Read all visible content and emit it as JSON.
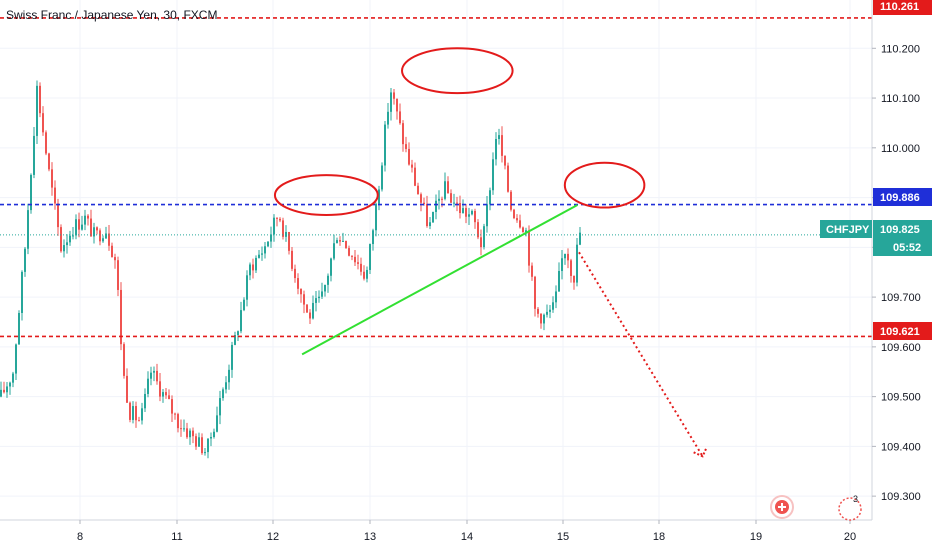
{
  "header": {
    "title": "Swiss Franc / Japanese Yen, 30, FXCM"
  },
  "colors": {
    "up": "#26a69a",
    "down": "#ef5350",
    "resistance": "#e31b1b",
    "support": "#e31b1b",
    "pivot": "#1f2fd8",
    "current": "#26a69a",
    "trendline": "#32e032",
    "annotation": "#e31b1b",
    "axis_text": "#131722"
  },
  "price_tags": {
    "upper": "110.261",
    "blue": "109.886",
    "current": "109.825",
    "countdown": "05:52",
    "lower": "109.621",
    "symbol": "CHFJPY"
  },
  "badges": {
    "count": "3"
  },
  "chart_data": {
    "type": "candlestick",
    "title": "Swiss Franc / Japanese Yen, 30, FXCM",
    "symbol": "CHFJPY",
    "interval": "30",
    "source": "FXCM",
    "ylim": [
      109.24,
      110.285
    ],
    "y_ticks": [
      "110.200",
      "110.100",
      "110.000",
      "109.900",
      "109.800",
      "109.700",
      "109.600",
      "109.500",
      "109.400",
      "109.300"
    ],
    "x_ticks": [
      "8",
      "11",
      "12",
      "13",
      "14",
      "15",
      "18",
      "19",
      "20"
    ],
    "horizontal_lines": [
      {
        "value": 110.261,
        "style": "dashed",
        "color": "#e31b1b"
      },
      {
        "value": 109.886,
        "style": "dashed",
        "color": "#1f2fd8"
      },
      {
        "value": 109.825,
        "style": "dotted",
        "color": "#26a69a"
      },
      {
        "value": 109.621,
        "style": "dashed",
        "color": "#e31b1b"
      }
    ],
    "trendline": {
      "from": [
        12.3,
        109.585
      ],
      "to": [
        15.45,
        109.885
      ],
      "color": "#32e032"
    },
    "projection": {
      "from": [
        15.5,
        109.79
      ],
      "to": [
        18.45,
        109.38
      ],
      "style": "dotted",
      "color": "#e31b1b"
    },
    "annotations": [
      {
        "type": "ellipse",
        "center": [
          12.55,
          109.905
        ],
        "radius": [
          0.53,
          0.04
        ],
        "color": "#e31b1b"
      },
      {
        "type": "ellipse",
        "center": [
          13.9,
          110.155
        ],
        "radius": [
          0.57,
          0.045
        ],
        "color": "#e31b1b"
      },
      {
        "type": "ellipse",
        "center": [
          16.3,
          109.925
        ],
        "radius": [
          0.41,
          0.045
        ],
        "color": "#e31b1b"
      }
    ],
    "price_path": [
      [
        7.0,
        109.5
      ],
      [
        7.15,
        109.55
      ],
      [
        7.3,
        109.8
      ],
      [
        7.45,
        110.12
      ],
      [
        7.6,
        109.95
      ],
      [
        7.75,
        109.8
      ],
      [
        7.9,
        109.84
      ],
      [
        8.05,
        109.86
      ],
      [
        8.2,
        109.82
      ],
      [
        8.35,
        109.84
      ],
      [
        8.5,
        109.77
      ],
      [
        8.6,
        109.55
      ],
      [
        8.7,
        109.47
      ],
      [
        8.85,
        109.45
      ],
      [
        9.0,
        109.55
      ],
      [
        11.0,
        109.45
      ],
      [
        11.15,
        109.42
      ],
      [
        11.3,
        109.39
      ],
      [
        11.45,
        109.5
      ],
      [
        11.6,
        109.62
      ],
      [
        11.75,
        109.76
      ],
      [
        11.9,
        109.8
      ],
      [
        12.05,
        109.87
      ],
      [
        12.2,
        109.76
      ],
      [
        12.35,
        109.66
      ],
      [
        12.5,
        109.7
      ],
      [
        12.65,
        109.83
      ],
      [
        12.8,
        109.79
      ],
      [
        12.95,
        109.74
      ],
      [
        13.05,
        109.88
      ],
      [
        13.2,
        110.12
      ],
      [
        13.35,
        110.0
      ],
      [
        13.5,
        109.9
      ],
      [
        13.6,
        109.84
      ],
      [
        13.75,
        109.92
      ],
      [
        13.9,
        109.88
      ],
      [
        14.05,
        109.86
      ],
      [
        14.15,
        109.8
      ],
      [
        14.3,
        110.04
      ],
      [
        14.45,
        109.88
      ],
      [
        14.6,
        109.84
      ],
      [
        14.7,
        109.67
      ],
      [
        14.8,
        109.66
      ],
      [
        14.9,
        109.68
      ],
      [
        15.0,
        109.8
      ],
      [
        15.1,
        109.79
      ],
      [
        15.25,
        109.75
      ],
      [
        15.35,
        109.74
      ],
      [
        15.45,
        109.84
      ],
      [
        15.55,
        109.82
      ]
    ]
  }
}
